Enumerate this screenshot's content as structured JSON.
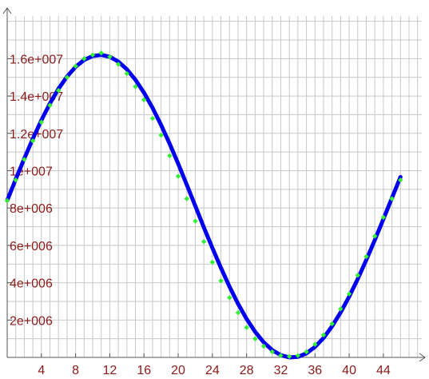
{
  "chart_data": {
    "type": "line",
    "title": "",
    "xlabel": "",
    "ylabel": "",
    "xlim": [
      0,
      47
    ],
    "ylim": [
      0,
      17600000
    ],
    "grid": true,
    "legend": "none",
    "x_ticks": [
      4,
      8,
      12,
      16,
      20,
      24,
      28,
      32,
      36,
      40,
      44
    ],
    "x_tick_labels": [
      "4",
      "8",
      "12",
      "16",
      "20",
      "24",
      "28",
      "32",
      "36",
      "40",
      "44"
    ],
    "y_ticks": [
      2000000,
      4000000,
      6000000,
      8000000,
      10000000,
      12000000,
      14000000,
      16000000
    ],
    "y_tick_labels": [
      "2e+006",
      "4e+006",
      "6e+006",
      "8e+006",
      "1e+007",
      "1.2e+007",
      "1.4e+007",
      "1.6e+007"
    ],
    "series": [
      {
        "kind": "line",
        "color": "#0000ee",
        "x": [
          0,
          1,
          2,
          3,
          4,
          5,
          6,
          7,
          8,
          9,
          10,
          11,
          12,
          13,
          14,
          15,
          16,
          17,
          18,
          19,
          20,
          21,
          22,
          23,
          24,
          25,
          26,
          27,
          28,
          29,
          30,
          31,
          32,
          33,
          34,
          35,
          36,
          37,
          38,
          39,
          40,
          41,
          42,
          43,
          44,
          45,
          46
        ],
        "y": [
          8400000,
          9540000,
          10650000,
          11710000,
          12700000,
          13600000,
          14390000,
          15040000,
          15560000,
          15930000,
          16140000,
          16200000,
          16100000,
          15840000,
          15430000,
          14870000,
          14180000,
          13370000,
          12450000,
          11450000,
          10380000,
          9260000,
          8120000,
          6970000,
          5860000,
          4790000,
          3790000,
          2870000,
          2060000,
          1370000,
          810000,
          390000,
          120000,
          0,
          30000,
          220000,
          560000,
          1040000,
          1670000,
          2410000,
          3260000,
          4200000,
          5220000,
          6290000,
          7410000,
          8540000,
          9660000
        ]
      },
      {
        "kind": "scatter",
        "color": "#33ee33",
        "marker": "diamond",
        "x": [
          0,
          1,
          2,
          3,
          4,
          5,
          6,
          7,
          8,
          9,
          10,
          11,
          12,
          13,
          14,
          15,
          16,
          17,
          18,
          19,
          20,
          21,
          22,
          23,
          24,
          25,
          26,
          27,
          28,
          29,
          30,
          31,
          32,
          33,
          34,
          35,
          36,
          37,
          38,
          39,
          40,
          41,
          42,
          43,
          44,
          45,
          46
        ],
        "y": [
          8400000,
          9500000,
          10600000,
          11600000,
          12600000,
          13500000,
          14300000,
          15000000,
          15600000,
          16000000,
          16200000,
          16300000,
          16100000,
          15700000,
          15200000,
          14500000,
          13800000,
          12800000,
          11900000,
          10800000,
          9700000,
          8500000,
          7300000,
          6200000,
          5100000,
          4100000,
          3200000,
          2400000,
          1600000,
          1000000,
          600000,
          300000,
          100000,
          50000,
          100000,
          300000,
          700000,
          1200000,
          1800000,
          2600000,
          3400000,
          4400000,
          5400000,
          6500000,
          7500000,
          8500000,
          9500000
        ]
      }
    ]
  }
}
